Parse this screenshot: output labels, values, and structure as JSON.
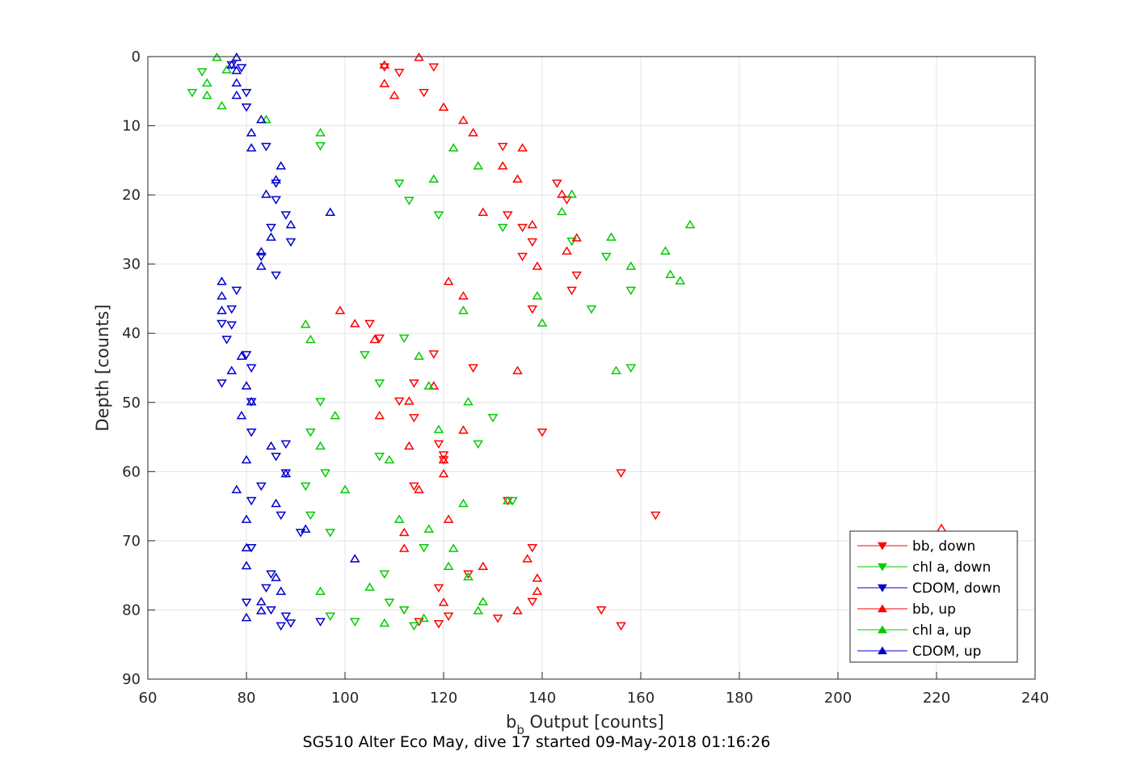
{
  "chart_data": {
    "type": "scatter",
    "xlabel_main": "b",
    "xlabel_sub": "b",
    "xlabel_rest": " Output [counts]",
    "ylabel": "Depth [counts]",
    "caption": "SG510 Alter Eco May, dive 17 started 09-May-2018 01:16:26",
    "xlim": [
      60,
      240
    ],
    "ylim": [
      0,
      90
    ],
    "y_reversed": true,
    "grid": true,
    "xticks": [
      "60",
      "80",
      "100",
      "120",
      "140",
      "160",
      "180",
      "200",
      "220",
      "240"
    ],
    "yticks": [
      "0",
      "10",
      "20",
      "30",
      "40",
      "50",
      "60",
      "70",
      "80",
      "90"
    ],
    "legend_position": "bottom-right",
    "series": [
      {
        "name": "bb, down",
        "color": "#ff0000",
        "marker": "triangle-down",
        "points": [
          [
            108,
            1.5
          ],
          [
            118,
            1.5
          ],
          [
            111,
            2.3
          ],
          [
            116,
            5.2
          ],
          [
            132,
            13
          ],
          [
            143,
            18.3
          ],
          [
            145,
            20.7
          ],
          [
            133,
            22.9
          ],
          [
            136,
            24.7
          ],
          [
            138,
            26.8
          ],
          [
            136,
            28.9
          ],
          [
            147,
            31.6
          ],
          [
            146,
            33.8
          ],
          [
            138,
            36.5
          ],
          [
            105,
            38.6
          ],
          [
            107,
            40.7
          ],
          [
            118,
            43
          ],
          [
            126,
            45
          ],
          [
            114,
            47.2
          ],
          [
            111,
            49.8
          ],
          [
            114,
            52.2
          ],
          [
            140,
            54.3
          ],
          [
            119,
            56
          ],
          [
            120,
            57.6
          ],
          [
            120,
            58.3
          ],
          [
            156,
            60.2
          ],
          [
            114,
            62.1
          ],
          [
            133,
            64.2
          ],
          [
            163,
            66.3
          ],
          [
            138,
            71
          ],
          [
            125,
            74.8
          ],
          [
            119,
            76.8
          ],
          [
            138,
            78.8
          ],
          [
            152,
            80
          ],
          [
            121,
            80.9
          ],
          [
            131,
            81.2
          ],
          [
            115,
            81.7
          ],
          [
            119,
            82
          ],
          [
            156,
            82.3
          ]
        ]
      },
      {
        "name": "chl a, down",
        "color": "#00cc00",
        "marker": "triangle-down",
        "points": [
          [
            71,
            2.2
          ],
          [
            69,
            5.2
          ],
          [
            95,
            12.9
          ],
          [
            111,
            18.3
          ],
          [
            113,
            20.8
          ],
          [
            119,
            22.9
          ],
          [
            132,
            24.7
          ],
          [
            146,
            26.7
          ],
          [
            153,
            28.9
          ],
          [
            158,
            33.8
          ],
          [
            150,
            36.5
          ],
          [
            112,
            40.7
          ],
          [
            104,
            43.1
          ],
          [
            158,
            45
          ],
          [
            107,
            47.2
          ],
          [
            95,
            49.9
          ],
          [
            130,
            52.2
          ],
          [
            93,
            54.3
          ],
          [
            127,
            56
          ],
          [
            107,
            57.8
          ],
          [
            96,
            60.2
          ],
          [
            92,
            62.1
          ],
          [
            134,
            64.2
          ],
          [
            93,
            66.3
          ],
          [
            97,
            68.8
          ],
          [
            116,
            71
          ],
          [
            108,
            74.8
          ],
          [
            109,
            78.9
          ],
          [
            112,
            80
          ],
          [
            97,
            80.9
          ],
          [
            102,
            81.7
          ],
          [
            114,
            82.3
          ]
        ]
      },
      {
        "name": "CDOM, down",
        "color": "#0000cc",
        "marker": "triangle-down",
        "points": [
          [
            77,
            1.2
          ],
          [
            79,
            1.6
          ],
          [
            80,
            5.2
          ],
          [
            80,
            7.3
          ],
          [
            84,
            13
          ],
          [
            86,
            18.3
          ],
          [
            86,
            20.7
          ],
          [
            88,
            22.9
          ],
          [
            85,
            24.7
          ],
          [
            89,
            26.8
          ],
          [
            83,
            28.9
          ],
          [
            86,
            31.6
          ],
          [
            78,
            33.8
          ],
          [
            77,
            36.5
          ],
          [
            75,
            38.6
          ],
          [
            77,
            38.8
          ],
          [
            76,
            40.9
          ],
          [
            80,
            43.1
          ],
          [
            81,
            45
          ],
          [
            75,
            47.2
          ],
          [
            81,
            49.9
          ],
          [
            81,
            54.3
          ],
          [
            88,
            56
          ],
          [
            86,
            57.8
          ],
          [
            88,
            60.2
          ],
          [
            83,
            62.1
          ],
          [
            81,
            64.2
          ],
          [
            87,
            66.3
          ],
          [
            91,
            68.8
          ],
          [
            81,
            71
          ],
          [
            85,
            74.8
          ],
          [
            84,
            76.8
          ],
          [
            80,
            78.9
          ],
          [
            85,
            80
          ],
          [
            88,
            80.9
          ],
          [
            89,
            81.9
          ],
          [
            95,
            81.7
          ],
          [
            87,
            82.3
          ]
        ]
      },
      {
        "name": "bb, up",
        "color": "#ff0000",
        "marker": "triangle-up",
        "points": [
          [
            115,
            0.1
          ],
          [
            108,
            1.2
          ],
          [
            108,
            3.9
          ],
          [
            110,
            5.6
          ],
          [
            120,
            7.3
          ],
          [
            124,
            9.2
          ],
          [
            126,
            11
          ],
          [
            136,
            13.2
          ],
          [
            132,
            15.8
          ],
          [
            135,
            17.7
          ],
          [
            144,
            19.9
          ],
          [
            128,
            22.5
          ],
          [
            138,
            24.3
          ],
          [
            147,
            26.2
          ],
          [
            145,
            28.1
          ],
          [
            139,
            30.3
          ],
          [
            121,
            32.5
          ],
          [
            124,
            34.6
          ],
          [
            99,
            36.7
          ],
          [
            102,
            38.6
          ],
          [
            106,
            40.9
          ],
          [
            118,
            47.6
          ],
          [
            113,
            49.8
          ],
          [
            107,
            51.9
          ],
          [
            124,
            54
          ],
          [
            113,
            56.3
          ],
          [
            120,
            58.3
          ],
          [
            120,
            60.3
          ],
          [
            115,
            62.6
          ],
          [
            121,
            66.9
          ],
          [
            112,
            68.8
          ],
          [
            112,
            71.1
          ],
          [
            137,
            72.6
          ],
          [
            128,
            73.7
          ],
          [
            139,
            75.4
          ],
          [
            139,
            77.3
          ],
          [
            120,
            78.9
          ],
          [
            135,
            80.1
          ],
          [
            221,
            68.2
          ],
          [
            135,
            45.4
          ]
        ]
      },
      {
        "name": "chl a, up",
        "color": "#00cc00",
        "marker": "triangle-up",
        "points": [
          [
            74,
            0.1
          ],
          [
            76,
            1.9
          ],
          [
            72,
            3.8
          ],
          [
            72,
            5.6
          ],
          [
            75,
            7.1
          ],
          [
            84,
            9.1
          ],
          [
            95,
            11
          ],
          [
            122,
            13.2
          ],
          [
            127,
            15.8
          ],
          [
            118,
            17.7
          ],
          [
            146,
            19.9
          ],
          [
            144,
            22.4
          ],
          [
            170,
            24.3
          ],
          [
            154,
            26.1
          ],
          [
            165,
            28.1
          ],
          [
            158,
            30.3
          ],
          [
            166,
            31.5
          ],
          [
            168,
            32.4
          ],
          [
            139,
            34.6
          ],
          [
            124,
            36.7
          ],
          [
            92,
            38.7
          ],
          [
            140,
            38.5
          ],
          [
            93,
            40.9
          ],
          [
            115,
            43.3
          ],
          [
            155,
            45.4
          ],
          [
            117,
            47.6
          ],
          [
            125,
            49.9
          ],
          [
            98,
            51.9
          ],
          [
            119,
            53.9
          ],
          [
            95,
            56.3
          ],
          [
            109,
            58.3
          ],
          [
            100,
            62.6
          ],
          [
            124,
            64.6
          ],
          [
            111,
            66.9
          ],
          [
            117,
            68.3
          ],
          [
            122,
            71.1
          ],
          [
            121,
            73.7
          ],
          [
            125,
            75.2
          ],
          [
            105,
            76.7
          ],
          [
            128,
            78.8
          ],
          [
            127,
            80.1
          ],
          [
            116,
            81.2
          ],
          [
            108,
            81.9
          ],
          [
            95,
            77.3
          ],
          [
            133,
            64.2
          ]
        ]
      },
      {
        "name": "CDOM, up",
        "color": "#0000cc",
        "marker": "triangle-up",
        "points": [
          [
            78,
            0.1
          ],
          [
            77,
            1.2
          ],
          [
            78,
            2
          ],
          [
            78,
            3.8
          ],
          [
            78,
            5.6
          ],
          [
            83,
            9.1
          ],
          [
            81,
            11
          ],
          [
            81,
            13.2
          ],
          [
            87,
            15.8
          ],
          [
            86,
            17.8
          ],
          [
            84,
            19.9
          ],
          [
            97,
            22.5
          ],
          [
            89,
            24.3
          ],
          [
            85,
            26.1
          ],
          [
            83,
            28.2
          ],
          [
            83,
            30.3
          ],
          [
            75,
            32.5
          ],
          [
            75,
            34.6
          ],
          [
            75,
            36.7
          ],
          [
            79,
            43.3
          ],
          [
            77,
            45.4
          ],
          [
            80,
            47.6
          ],
          [
            81,
            49.9
          ],
          [
            79,
            51.9
          ],
          [
            85,
            56.3
          ],
          [
            80,
            58.3
          ],
          [
            88,
            60.3
          ],
          [
            78,
            62.6
          ],
          [
            86,
            64.6
          ],
          [
            80,
            66.9
          ],
          [
            92,
            68.3
          ],
          [
            80,
            71
          ],
          [
            80,
            73.6
          ],
          [
            102,
            72.6
          ],
          [
            86,
            75.3
          ],
          [
            87,
            77.3
          ],
          [
            83,
            78.8
          ],
          [
            83,
            80.1
          ],
          [
            80,
            81.1
          ]
        ]
      }
    ]
  }
}
